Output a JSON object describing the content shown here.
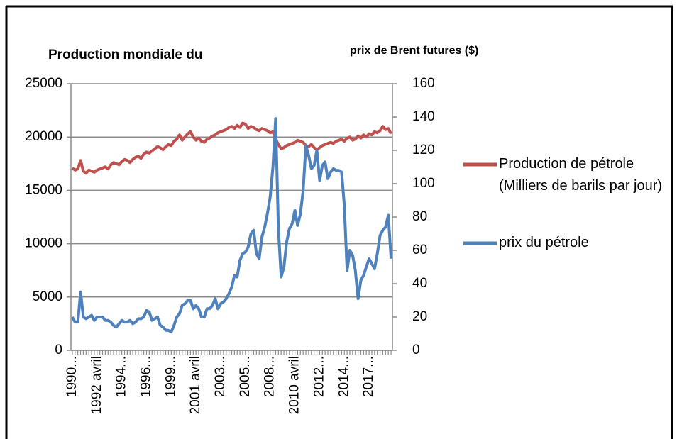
{
  "chart_data": {
    "type": "line",
    "title": "Production mondiale du",
    "y2_title": "prix de Brent futures ($)",
    "categories": [
      "1990...",
      null,
      null,
      null,
      null,
      null,
      null,
      null,
      null,
      "1992 avril",
      null,
      null,
      null,
      null,
      null,
      null,
      null,
      null,
      "1994...",
      null,
      null,
      null,
      null,
      null,
      null,
      null,
      null,
      "1996...",
      null,
      null,
      null,
      null,
      null,
      null,
      null,
      null,
      "1999...",
      null,
      null,
      null,
      null,
      null,
      null,
      null,
      null,
      "2001 avril",
      null,
      null,
      null,
      null,
      null,
      null,
      null,
      null,
      "2003...",
      null,
      null,
      null,
      null,
      null,
      null,
      null,
      null,
      "2005...",
      null,
      null,
      null,
      null,
      null,
      null,
      null,
      null,
      "2008...",
      null,
      null,
      null,
      null,
      null,
      null,
      null,
      null,
      "2010 avril",
      null,
      null,
      null,
      null,
      null,
      null,
      null,
      null,
      "2012...",
      null,
      null,
      null,
      null,
      null,
      null,
      null,
      null,
      "2014...",
      null,
      null,
      null,
      null,
      null,
      null,
      null,
      null,
      "2017...",
      null,
      null,
      null,
      null,
      null,
      null,
      null,
      null
    ],
    "series": [
      {
        "name": "Production de pétrole (Milliers de barils par jour)",
        "color": "#c0504d",
        "axis": "y",
        "values": [
          17100,
          16900,
          17000,
          17800,
          16800,
          16600,
          16900,
          16800,
          16700,
          16900,
          17000,
          17100,
          17200,
          17000,
          17400,
          17600,
          17500,
          17400,
          17700,
          17900,
          17800,
          17600,
          17900,
          18100,
          18200,
          18000,
          18400,
          18600,
          18500,
          18700,
          18900,
          19100,
          19000,
          18800,
          19100,
          19300,
          19200,
          19600,
          19800,
          20200,
          19700,
          20000,
          20300,
          20500,
          20000,
          19700,
          19900,
          19600,
          19500,
          19800,
          19900,
          20100,
          20200,
          20400,
          20500,
          20600,
          20700,
          20900,
          21000,
          20800,
          21100,
          20900,
          21300,
          21200,
          20800,
          21000,
          20900,
          20700,
          20600,
          20800,
          20700,
          20600,
          20400,
          20500,
          19800,
          19300,
          18900,
          19000,
          19200,
          19300,
          19400,
          19500,
          19700,
          19600,
          19500,
          19200,
          19100,
          19300,
          19000,
          18800,
          19000,
          19200,
          19300,
          19400,
          19500,
          19400,
          19600,
          19700,
          19800,
          19600,
          19900,
          20000,
          19700,
          19800,
          20100,
          19900,
          20200,
          20000,
          20300,
          20200,
          20500,
          20400,
          20600,
          21000,
          20700,
          20800,
          20300
        ]
      },
      {
        "name": "prix du pétrole",
        "color": "#4f81bd",
        "axis": "y2",
        "values": [
          20,
          17,
          17,
          35,
          20,
          19,
          20,
          21,
          18,
          20,
          20,
          20,
          18,
          18,
          17,
          15,
          14,
          16,
          18,
          17,
          17,
          18,
          16,
          17,
          19,
          19,
          20,
          24,
          23,
          18,
          19,
          20,
          15,
          14,
          12,
          12,
          11,
          15,
          20,
          22,
          27,
          28,
          30,
          30,
          25,
          27,
          25,
          20,
          20,
          25,
          25,
          27,
          31,
          25,
          28,
          29,
          31,
          34,
          38,
          45,
          44,
          54,
          58,
          59,
          62,
          70,
          72,
          58,
          55,
          68,
          74,
          82,
          92,
          110,
          139,
          73,
          44,
          50,
          65,
          73,
          76,
          84,
          75,
          82,
          96,
          123,
          117,
          109,
          111,
          120,
          102,
          111,
          113,
          103,
          107,
          109,
          108,
          108,
          107,
          87,
          48,
          60,
          57,
          48,
          31,
          42,
          45,
          50,
          55,
          52,
          49,
          58,
          69,
          72,
          74,
          81,
          55
        ]
      }
    ],
    "ylim": [
      0,
      25000
    ],
    "yticks": [
      0,
      5000,
      10000,
      15000,
      20000,
      25000
    ],
    "y2lim": [
      0,
      160
    ],
    "y2ticks": [
      0,
      20,
      40,
      60,
      80,
      100,
      120,
      140,
      160
    ],
    "grid": true
  }
}
